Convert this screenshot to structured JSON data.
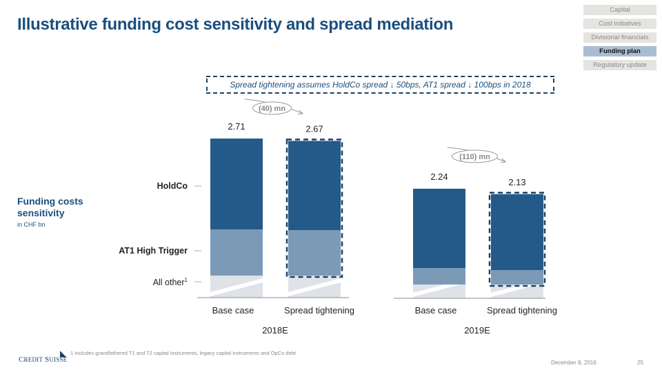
{
  "title": "Illustrative funding cost sensitivity and spread mediation",
  "nav": [
    {
      "label": "Capital",
      "active": false
    },
    {
      "label": "Cost initiatives",
      "active": false
    },
    {
      "label": "Divisional financials",
      "active": false
    },
    {
      "label": "Funding plan",
      "active": true
    },
    {
      "label": "Regulatory update",
      "active": false
    }
  ],
  "note": "Spread tightening assumes HoldCo spread ↓ 50bps, AT1 spread ↓ 100bps in 2018",
  "side": {
    "title": "Funding costs sensitivity",
    "unit": "in CHF bn"
  },
  "legend": {
    "holdco": "HoldCo",
    "at1": "AT1 High Trigger",
    "other": "All other",
    "other_sup": "1"
  },
  "chart_data": {
    "type": "bar",
    "stacked": true,
    "groups": [
      {
        "label": "2018E",
        "categories": [
          "Base case",
          "Spread tightening"
        ],
        "totals": [
          2.71,
          2.67
        ],
        "delta": "(40) mn"
      },
      {
        "label": "2019E",
        "categories": [
          "Base case",
          "Spread tightening"
        ],
        "totals": [
          2.24,
          2.13
        ],
        "delta": "(110) mn"
      }
    ],
    "series": [
      "HoldCo",
      "AT1 High Trigger",
      "All other"
    ],
    "colors": {
      "HoldCo": "#245a8a",
      "AT1 High Trigger": "#7b9ab7",
      "All other": "#dfe3e8"
    },
    "ylabel": "in CHF bn"
  },
  "footnote": "1 Includes grandfathered T1 and T2 capital instruments, legacy capital instruments and OpCo debt",
  "logo": "CREDIT SUISSE",
  "date": "December 8, 2016",
  "page": "25"
}
